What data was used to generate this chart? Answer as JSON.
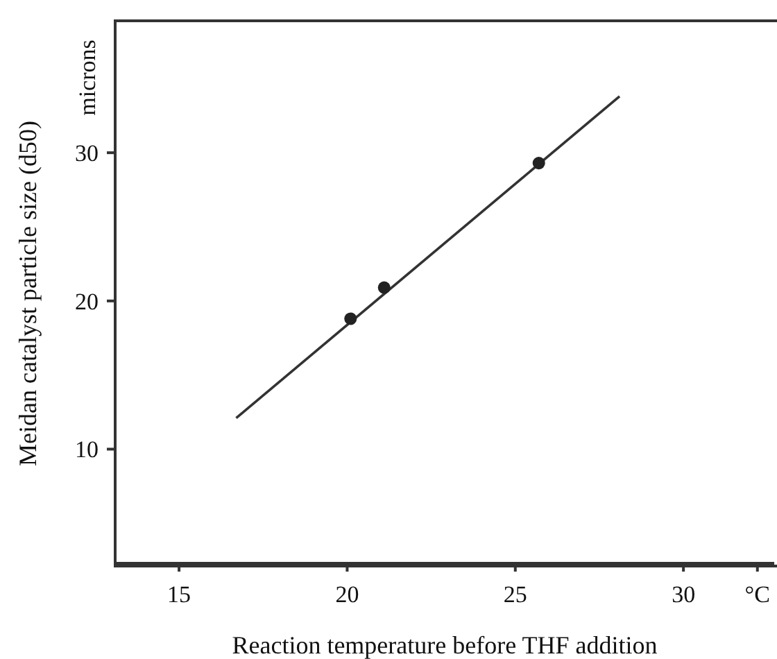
{
  "chart_data": {
    "type": "scatter",
    "xlabel": "Reaction temperature before THF addition",
    "ylabel": "Meidan catalyst particle size (d50)",
    "xlim": [
      13.1,
      32.7
    ],
    "xticks": [
      15,
      20,
      25,
      30,
      {
        "value": 32.2,
        "label": "°C"
      }
    ],
    "ylim": [
      2.3,
      38.9
    ],
    "yticks": [
      10,
      20,
      30
    ],
    "annotations": [
      "microns"
    ],
    "grid": false,
    "legend": false,
    "series": [
      {
        "color": "#222222",
        "marker": "circle",
        "x": [
          20.1,
          21.1,
          25.7
        ],
        "values": [
          18.8,
          20.9,
          29.3
        ]
      },
      {
        "type": "line",
        "color": "#333333",
        "marker": "none",
        "line_style": "solid",
        "x": [
          16.7,
          28.1
        ],
        "values": [
          12.1,
          33.8
        ]
      }
    ]
  }
}
